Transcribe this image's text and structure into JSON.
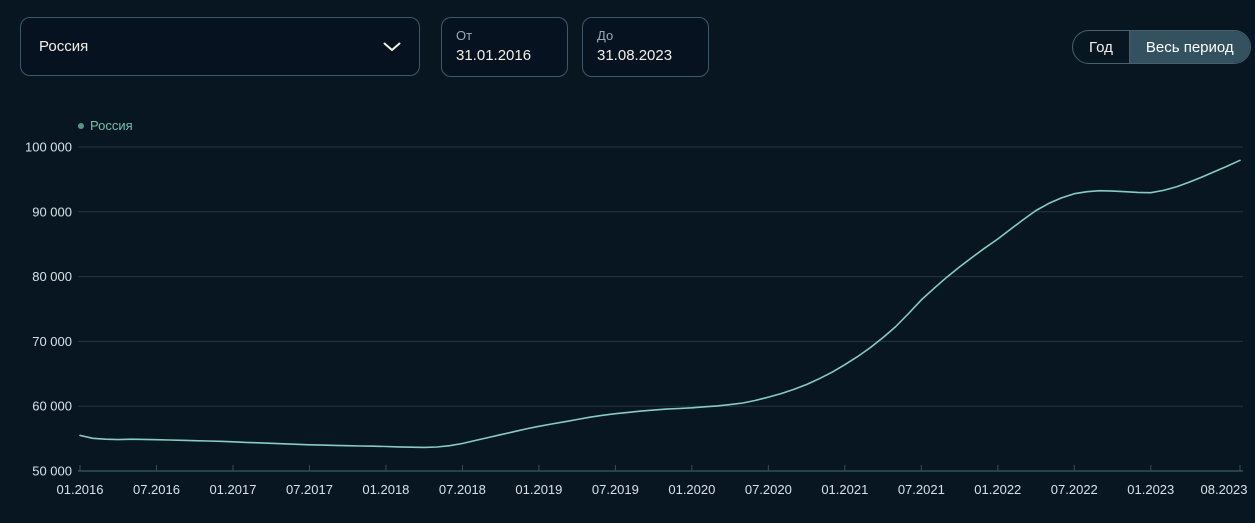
{
  "controls": {
    "region_select": {
      "value": "Россия"
    },
    "date_from": {
      "label": "От",
      "value": "31.01.2016"
    },
    "date_to": {
      "label": "До",
      "value": "31.08.2023"
    },
    "period_toggle": {
      "options": [
        "Год",
        "Весь период"
      ],
      "selected": "Весь период"
    }
  },
  "colors": {
    "background": "#081621",
    "control_border": "#3e5966",
    "control_text": "#f2efe7",
    "label_text": "#95aab4",
    "axis_text": "#d5e2e8",
    "grid_line": "#243641",
    "axis_line": "#33505c",
    "series_line": "#86cdbf",
    "legend_text": "#73c0a9",
    "toggle_selected_bg": "#33515f"
  },
  "chart_data": {
    "type": "line",
    "title": "",
    "xlabel": "",
    "ylabel": "",
    "ylim": [
      50000,
      100000
    ],
    "grid": "horizontal",
    "legend_position": "top-left",
    "y_ticks": [
      50000,
      60000,
      70000,
      80000,
      90000,
      100000
    ],
    "y_tick_labels": [
      "50 000",
      "60 000",
      "70 000",
      "80 000",
      "90 000",
      "100 000"
    ],
    "x_range": {
      "start": "01.2016",
      "end": "08.2023",
      "step": "month"
    },
    "x_ticks": [
      {
        "label": "01.2016",
        "month_index": 0
      },
      {
        "label": "07.2016",
        "month_index": 6
      },
      {
        "label": "01.2017",
        "month_index": 12
      },
      {
        "label": "07.2017",
        "month_index": 18
      },
      {
        "label": "01.2018",
        "month_index": 24
      },
      {
        "label": "07.2018",
        "month_index": 30
      },
      {
        "label": "01.2019",
        "month_index": 36
      },
      {
        "label": "07.2019",
        "month_index": 42
      },
      {
        "label": "01.2020",
        "month_index": 48
      },
      {
        "label": "07.2020",
        "month_index": 54
      },
      {
        "label": "01.2021",
        "month_index": 60
      },
      {
        "label": "07.2021",
        "month_index": 66
      },
      {
        "label": "01.2022",
        "month_index": 72
      },
      {
        "label": "07.2022",
        "month_index": 78
      },
      {
        "label": "01.2023",
        "month_index": 84
      },
      {
        "label": "08.2023",
        "month_index": 91
      }
    ],
    "series": [
      {
        "name": "Россия",
        "color": "#86cdbf",
        "values": [
          55500,
          55050,
          54900,
          54850,
          54900,
          54870,
          54830,
          54780,
          54730,
          54680,
          54630,
          54580,
          54500,
          54420,
          54350,
          54280,
          54200,
          54120,
          54050,
          54000,
          53950,
          53900,
          53860,
          53820,
          53780,
          53720,
          53670,
          53640,
          53700,
          53900,
          54250,
          54700,
          55150,
          55600,
          56050,
          56500,
          56900,
          57250,
          57600,
          57950,
          58300,
          58600,
          58850,
          59050,
          59250,
          59400,
          59550,
          59650,
          59750,
          59900,
          60050,
          60250,
          60500,
          60900,
          61400,
          61950,
          62600,
          63350,
          64250,
          65250,
          66400,
          67650,
          69050,
          70600,
          72300,
          74300,
          76400,
          78200,
          79900,
          81500,
          83000,
          84450,
          85800,
          87300,
          88800,
          90200,
          91300,
          92150,
          92800,
          93100,
          93250,
          93200,
          93100,
          93000,
          92950,
          93300,
          93850,
          94550,
          95350,
          96200,
          97050,
          97950
        ]
      }
    ]
  }
}
